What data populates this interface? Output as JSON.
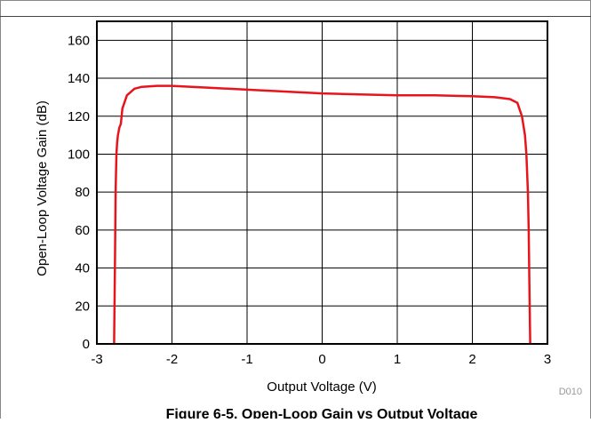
{
  "figure": {
    "caption": "Figure 6-5. Open-Loop Gain vs Output Voltage",
    "code": "D010"
  },
  "chart_data": {
    "type": "line",
    "title": "",
    "xlabel": "Output Voltage (V)",
    "ylabel": "Open-Loop Voltage Gain (dB)",
    "xlim": [
      -3,
      3
    ],
    "ylim": [
      0,
      170
    ],
    "xticks": [
      -3,
      -2,
      -1,
      0,
      1,
      2,
      3
    ],
    "yticks": [
      0,
      20,
      40,
      60,
      80,
      100,
      120,
      140,
      160
    ],
    "grid": true,
    "series": [
      {
        "color": "#e8141c",
        "x": [
          -2.77,
          -2.76,
          -2.75,
          -2.74,
          -2.73,
          -2.72,
          -2.7,
          -2.68,
          -2.66,
          -2.6,
          -2.5,
          -2.4,
          -2.2,
          -2.0,
          -1.5,
          -1.0,
          -0.5,
          0.0,
          0.5,
          1.0,
          1.5,
          2.0,
          2.3,
          2.5,
          2.6,
          2.66,
          2.7,
          2.72,
          2.74,
          2.75,
          2.76,
          2.77
        ],
        "y": [
          0,
          40,
          80,
          100,
          106,
          110,
          114,
          116,
          124,
          131,
          134.5,
          135.5,
          136,
          136,
          135,
          134,
          133,
          132,
          131.5,
          131,
          131,
          130.5,
          130,
          129,
          127,
          120,
          110,
          100,
          80,
          60,
          30,
          0
        ]
      }
    ]
  }
}
